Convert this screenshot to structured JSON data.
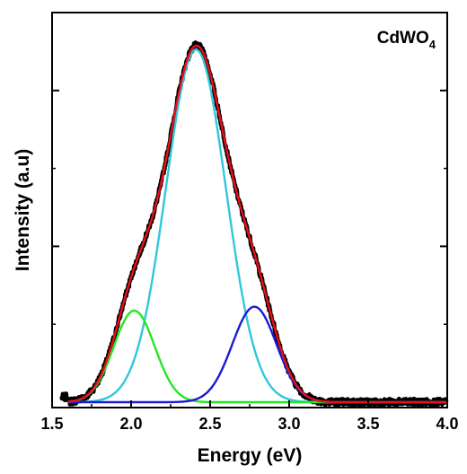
{
  "chart_data": {
    "type": "line",
    "title": "",
    "annotation": {
      "main": "CdWO",
      "subscript": "4"
    },
    "xlabel": "Energy (eV)",
    "ylabel": "Intensity (a.u)",
    "xlim": [
      1.5,
      4.0
    ],
    "ylim": [
      0,
      1.0
    ],
    "x_ticks": [
      1.5,
      2.0,
      2.5,
      3.0,
      3.5,
      4.0
    ],
    "x_tick_labels": [
      "1.5",
      "2.0",
      "2.5",
      "3.0",
      "3.5",
      "4.0"
    ],
    "y_ticks_show_labels": false,
    "grid": false,
    "legend": "none",
    "series": [
      {
        "kind": "measured",
        "color": "#000000",
        "gaussians": [
          [
            0.235,
            2.02,
            0.13
          ],
          [
            0.905,
            2.41,
            0.19
          ],
          [
            0.245,
            2.78,
            0.14
          ]
        ]
      },
      {
        "kind": "fit",
        "color": "#e8101a",
        "gaussians": [
          [
            0.235,
            2.02,
            0.13
          ],
          [
            0.905,
            2.41,
            0.19
          ],
          [
            0.245,
            2.78,
            0.14
          ]
        ]
      },
      {
        "kind": "component",
        "color": "#2ec8dc",
        "gaussians": [
          [
            0.905,
            2.41,
            0.19
          ]
        ]
      },
      {
        "kind": "component",
        "color": "#22e822",
        "gaussians": [
          [
            0.235,
            2.02,
            0.13
          ]
        ]
      },
      {
        "kind": "component",
        "color": "#1a1ad6",
        "gaussians": [
          [
            0.245,
            2.78,
            0.14
          ]
        ]
      }
    ]
  }
}
